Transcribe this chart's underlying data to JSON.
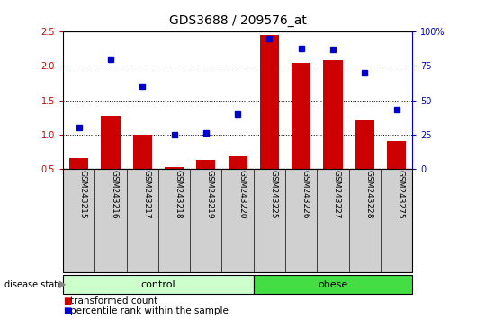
{
  "title": "GDS3688 / 209576_at",
  "categories": [
    "GSM243215",
    "GSM243216",
    "GSM243217",
    "GSM243218",
    "GSM243219",
    "GSM243220",
    "GSM243225",
    "GSM243226",
    "GSM243227",
    "GSM243228",
    "GSM243275"
  ],
  "red_values": [
    0.65,
    1.27,
    1.0,
    0.52,
    0.62,
    0.68,
    2.45,
    2.05,
    2.08,
    1.2,
    0.9
  ],
  "blue_values": [
    30,
    80,
    60,
    25,
    26,
    40,
    95,
    88,
    87,
    70,
    43
  ],
  "ylim_left": [
    0.5,
    2.5
  ],
  "ylim_right": [
    0,
    100
  ],
  "yticks_left": [
    0.5,
    1.0,
    1.5,
    2.0,
    2.5
  ],
  "yticks_right": [
    0,
    25,
    50,
    75,
    100
  ],
  "ytick_labels_right": [
    "0",
    "25",
    "50",
    "75",
    "100%"
  ],
  "control_indices": [
    0,
    1,
    2,
    3,
    4,
    5
  ],
  "obese_indices": [
    6,
    7,
    8,
    9,
    10
  ],
  "control_label": "control",
  "obese_label": "obese",
  "disease_state_label": "disease state",
  "legend_red": "transformed count",
  "legend_blue": "percentile rank within the sample",
  "bar_color": "#cc0000",
  "dot_color": "#0000cc",
  "control_color": "#ccffcc",
  "obese_color": "#44dd44",
  "ticklabel_bg": "#d0d0d0",
  "bar_width": 0.6,
  "title_fontsize": 10,
  "tick_fontsize": 7,
  "cat_fontsize": 6.5,
  "legend_fontsize": 7.5,
  "band_fontsize": 8,
  "ytick_red_color": "#cc0000",
  "ytick_blue_color": "#0000cc",
  "xlim": [
    -0.5,
    10.5
  ]
}
